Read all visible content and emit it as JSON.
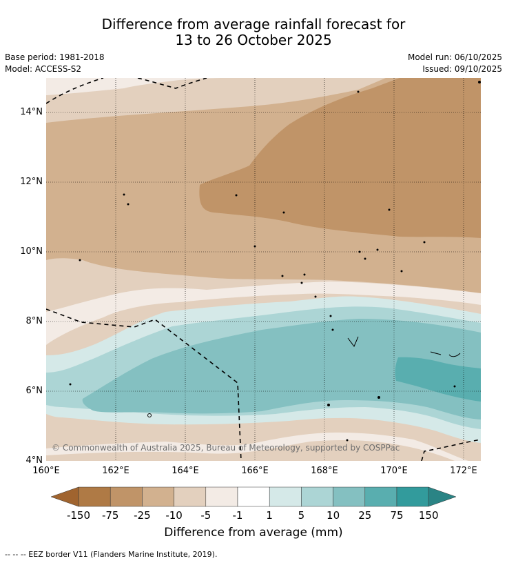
{
  "title": {
    "line1": "Difference from average rainfall forecast for",
    "line2": "13 to 26 October 2025"
  },
  "meta": {
    "base_period": "Base period: 1981-2018",
    "model": "Model: ACCESS-S2",
    "model_run": "Model run: 06/10/2025",
    "issued": "Issued: 09/10/2025"
  },
  "axes": {
    "lat_labels": [
      "14°N",
      "12°N",
      "10°N",
      "8°N",
      "6°N",
      "4°N"
    ],
    "lon_labels": [
      "160°E",
      "162°E",
      "164°E",
      "166°E",
      "168°E",
      "170°E",
      "172°E"
    ]
  },
  "colorbar": {
    "ticks": [
      "-150",
      "-75",
      "-25",
      "-10",
      "-5",
      "-1",
      "1",
      "5",
      "10",
      "25",
      "75",
      "150"
    ],
    "colors": [
      "#a0642f",
      "#af7a45",
      "#c09468",
      "#d2b18f",
      "#e3d0be",
      "#f3ebe5",
      "#ffffff",
      "#d5e9e8",
      "#acd5d5",
      "#84c0c1",
      "#59aeaf",
      "#329b9c",
      "#2a8485"
    ],
    "label": "Difference from average (mm)"
  },
  "copyright": "© Commonwealth of Australia 2025, Bureau of Meteorology, supported by COSPPac",
  "eez_note": "--  --  -- EEZ border V11 (Flanders Marine Institute, 2019)."
}
